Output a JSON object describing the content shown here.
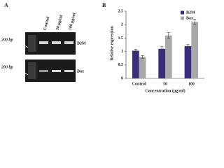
{
  "panel_a": {
    "panel_label": "A",
    "lanes": [
      "Control",
      "50 μg/ml",
      "100 μg/ml"
    ],
    "marker_top": "200 bp",
    "marker_bottom": "200 bp",
    "gene_top": "B2M",
    "gene_bottom": "Bax"
  },
  "chart_data": {
    "type": "bar",
    "panel_label": "B",
    "y_label": "Relative expression",
    "x_label": "Concentration (μg/ml)",
    "categories": [
      "Control",
      "50",
      "100"
    ],
    "series": [
      {
        "name": "B2M",
        "color": "#3b2c7a",
        "values": [
          1.03,
          1.1,
          1.2
        ],
        "errors": [
          0.05,
          0.08,
          0.06
        ]
      },
      {
        "name": "Bax",
        "color": "#a9a9a9",
        "values": [
          0.8,
          1.6,
          2.1
        ],
        "errors": [
          0.05,
          0.1,
          0.1
        ]
      }
    ],
    "ylim": [
      0,
      2.5
    ],
    "yticks": [
      0,
      0.5,
      1,
      1.5,
      2,
      2.5
    ],
    "legend": "top-right"
  }
}
